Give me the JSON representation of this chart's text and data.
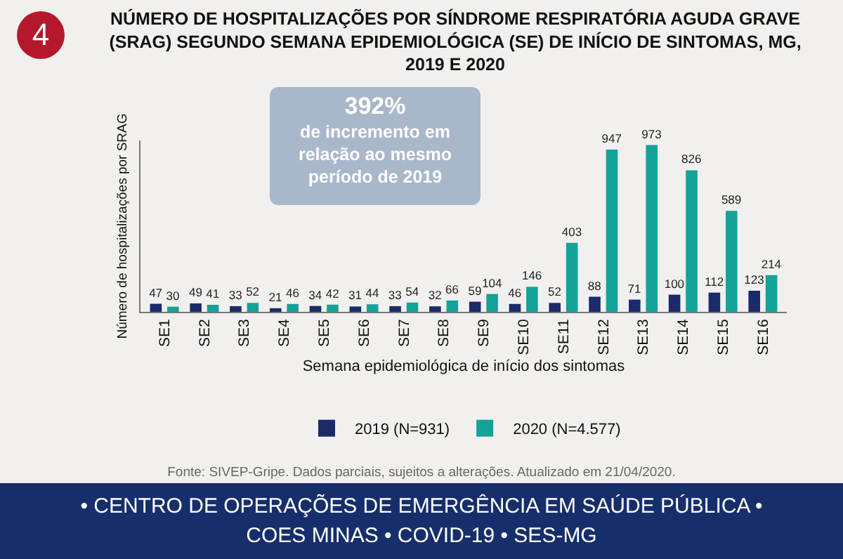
{
  "chart_data": {
    "type": "bar",
    "title": "NÚMERO DE HOSPITALIZAÇÕES POR SÍNDROME RESPIRATÓRIA AGUDA GRAVE\n(SRAG) SEGUNDO SEMANA EPIDEMIOLÓGICA (SE) DE INÍCIO DE SINTOMAS, MG,\n2019 E 2020",
    "xlabel": "Semana epidemiológica de início dos sintomas",
    "ylabel": "Número de hospitalizações por SRAG",
    "categories": [
      "SE1",
      "SE2",
      "SE3",
      "SE4",
      "SE5",
      "SE6",
      "SE7",
      "SE8",
      "SE9",
      "SE10",
      "SE11",
      "SE12",
      "SE13",
      "SE14",
      "SE15",
      "SE16"
    ],
    "series": [
      {
        "name": "2019 (N=931)",
        "color": "#1b2a6b",
        "values": [
          47,
          49,
          33,
          21,
          34,
          31,
          33,
          32,
          59,
          46,
          52,
          88,
          71,
          100,
          112,
          123
        ]
      },
      {
        "name": "2020 (N=4.577)",
        "color": "#14a398",
        "values": [
          30,
          41,
          52,
          46,
          42,
          44,
          54,
          66,
          104,
          146,
          403,
          947,
          973,
          826,
          589,
          214
        ]
      }
    ],
    "ylim": [
      0,
      1000
    ],
    "tick_labels": "x",
    "data_labels": true,
    "legend": "bottom",
    "annotations": [
      "4",
      "392%\nde incremento em\nrelação ao mesmo\nperíodo de 2019",
      "Fonte: SIVEP-Gripe. Dados parciais, sujeitos a alterações. Atualizado em 21/04/2020.",
      "• CENTRO DE OPERAÇÕES DE EMERGÊNCIA EM SAÚDE PÚBLICA •\nCOES MINAS • COVID-19 • SES-MG"
    ]
  }
}
